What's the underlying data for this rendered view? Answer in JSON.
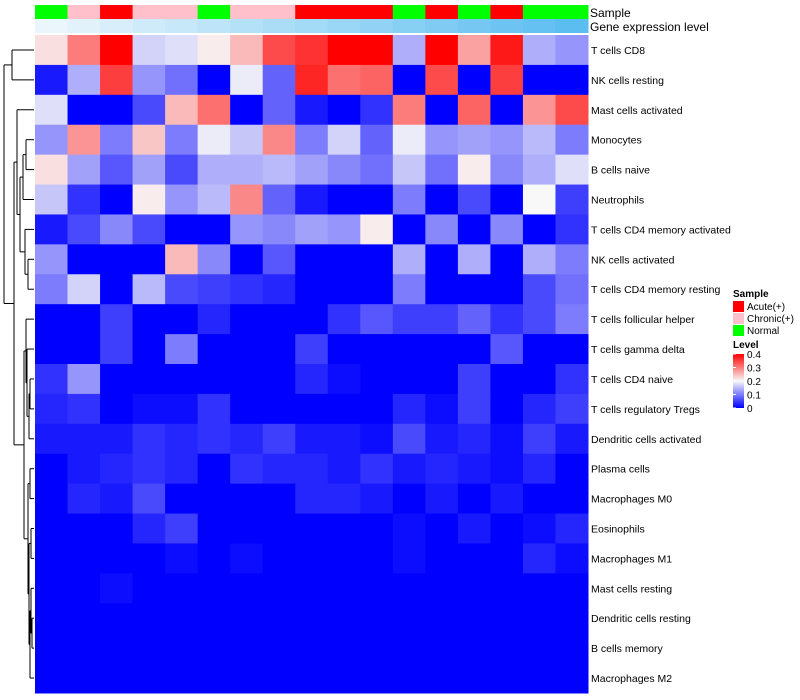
{
  "chart_data": {
    "type": "heatmap",
    "annotation_titles": [
      "Sample",
      "Gene expression level"
    ],
    "rows": [
      "T cells CD8",
      "NK cells resting",
      "Mast cells activated",
      "Monocytes",
      "B cells naive",
      "Neutrophils",
      "T cells CD4 memory activated",
      "NK cells activated",
      "T cells CD4 memory resting",
      "T cells follicular helper",
      "T cells gamma delta",
      "T cells CD4 naive",
      "T cells regulatory  Tregs",
      "Dendritic cells activated",
      "Plasma cells",
      "Macrophages M0",
      "Eosinophils",
      "Macrophages M1",
      "Mast cells resting",
      "Dendritic cells resting",
      "B cells memory",
      "Macrophages M2"
    ],
    "sample_groups": [
      "Normal",
      "Chronic(+)",
      "Acute(+)",
      "Chronic(+)",
      "Chronic(+)",
      "Normal",
      "Chronic(+)",
      "Chronic(+)",
      "Acute(+)",
      "Acute(+)",
      "Acute(+)",
      "Normal",
      "Acute(+)",
      "Normal",
      "Acute(+)",
      "Normal",
      "Normal"
    ],
    "expression_level": [
      0.02,
      0.05,
      0.08,
      0.11,
      0.14,
      0.17,
      0.2,
      0.23,
      0.26,
      0.29,
      0.32,
      0.35,
      0.38,
      0.41,
      0.44,
      0.47,
      0.5
    ],
    "values": [
      [
        0.22,
        0.3,
        0.4,
        0.17,
        0.18,
        0.21,
        0.25,
        0.34,
        0.36,
        0.4,
        0.4,
        0.14,
        0.4,
        0.27,
        0.38,
        0.14,
        0.12
      ],
      [
        0.02,
        0.14,
        0.35,
        0.12,
        0.09,
        0.0,
        0.19,
        0.08,
        0.37,
        0.31,
        0.32,
        0.0,
        0.34,
        0.0,
        0.35,
        0.0,
        0.0
      ],
      [
        0.18,
        0.0,
        0.0,
        0.06,
        0.25,
        0.31,
        0.0,
        0.08,
        0.02,
        0.0,
        0.04,
        0.3,
        0.0,
        0.32,
        0.0,
        0.28,
        0.34
      ],
      [
        0.12,
        0.28,
        0.1,
        0.24,
        0.1,
        0.19,
        0.16,
        0.29,
        0.1,
        0.17,
        0.08,
        0.19,
        0.12,
        0.13,
        0.12,
        0.15,
        0.1
      ],
      [
        0.22,
        0.13,
        0.07,
        0.13,
        0.06,
        0.14,
        0.14,
        0.15,
        0.13,
        0.11,
        0.09,
        0.16,
        0.09,
        0.21,
        0.11,
        0.14,
        0.18
      ],
      [
        0.16,
        0.04,
        0.0,
        0.21,
        0.12,
        0.15,
        0.29,
        0.08,
        0.02,
        0.0,
        0.0,
        0.1,
        0.0,
        0.06,
        0.0,
        0.2,
        0.05
      ],
      [
        0.02,
        0.06,
        0.11,
        0.06,
        0.0,
        0.0,
        0.12,
        0.11,
        0.13,
        0.12,
        0.21,
        0.0,
        0.11,
        0.0,
        0.11,
        0.0,
        0.04
      ],
      [
        0.12,
        0.0,
        0.0,
        0.0,
        0.25,
        0.11,
        0.0,
        0.07,
        0.0,
        0.0,
        0.0,
        0.14,
        0.0,
        0.14,
        0.0,
        0.14,
        0.1
      ],
      [
        0.1,
        0.17,
        0.0,
        0.15,
        0.06,
        0.05,
        0.04,
        0.03,
        0.0,
        0.0,
        0.0,
        0.1,
        0.0,
        0.0,
        0.0,
        0.06,
        0.09
      ],
      [
        0.0,
        0.0,
        0.05,
        0.0,
        0.0,
        0.03,
        0.0,
        0.0,
        0.0,
        0.04,
        0.07,
        0.05,
        0.05,
        0.08,
        0.04,
        0.06,
        0.1
      ],
      [
        0.0,
        0.0,
        0.05,
        0.0,
        0.1,
        0.0,
        0.0,
        0.0,
        0.05,
        0.0,
        0.0,
        0.0,
        0.0,
        0.0,
        0.07,
        0.0,
        0.0
      ],
      [
        0.04,
        0.12,
        0.0,
        0.0,
        0.0,
        0.0,
        0.0,
        0.0,
        0.03,
        0.01,
        0.0,
        0.0,
        0.0,
        0.05,
        0.0,
        0.0,
        0.04
      ],
      [
        0.03,
        0.04,
        0.0,
        0.01,
        0.01,
        0.04,
        0.0,
        0.0,
        0.0,
        0.0,
        0.0,
        0.03,
        0.01,
        0.05,
        0.0,
        0.03,
        0.05
      ],
      [
        0.02,
        0.02,
        0.02,
        0.04,
        0.03,
        0.04,
        0.03,
        0.05,
        0.02,
        0.02,
        0.01,
        0.06,
        0.02,
        0.03,
        0.01,
        0.05,
        0.02
      ],
      [
        0.0,
        0.02,
        0.03,
        0.04,
        0.03,
        0.0,
        0.04,
        0.03,
        0.03,
        0.02,
        0.04,
        0.02,
        0.03,
        0.02,
        0.01,
        0.03,
        0.0
      ],
      [
        0.0,
        0.03,
        0.02,
        0.06,
        0.0,
        0.0,
        0.0,
        0.0,
        0.03,
        0.03,
        0.02,
        0.0,
        0.02,
        0.0,
        0.02,
        0.0,
        0.0
      ],
      [
        0.0,
        0.0,
        0.0,
        0.03,
        0.05,
        0.0,
        0.0,
        0.0,
        0.0,
        0.0,
        0.0,
        0.01,
        0.0,
        0.02,
        0.0,
        0.01,
        0.03
      ],
      [
        0.0,
        0.0,
        0.0,
        0.0,
        0.01,
        0.0,
        0.01,
        0.0,
        0.0,
        0.0,
        0.0,
        0.01,
        0.0,
        0.0,
        0.0,
        0.03,
        0.01
      ],
      [
        0.0,
        0.0,
        0.01,
        0.0,
        0.0,
        0.0,
        0.0,
        0.0,
        0.0,
        0.0,
        0.0,
        0.0,
        0.0,
        0.0,
        0.0,
        0.0,
        0.0
      ],
      [
        0.0,
        0.0,
        0.0,
        0.0,
        0.0,
        0.0,
        0.0,
        0.0,
        0.0,
        0.0,
        0.0,
        0.0,
        0.0,
        0.0,
        0.0,
        0.0,
        0.0
      ],
      [
        0.0,
        0.0,
        0.0,
        0.0,
        0.0,
        0.0,
        0.0,
        0.0,
        0.0,
        0.0,
        0.0,
        0.0,
        0.0,
        0.0,
        0.0,
        0.0,
        0.0
      ],
      [
        0.0,
        0.0,
        0.0,
        0.0,
        0.0,
        0.0,
        0.0,
        0.0,
        0.0,
        0.0,
        0.0,
        0.0,
        0.0,
        0.0,
        0.0,
        0.0,
        0.0
      ]
    ],
    "color_scale": {
      "min": 0,
      "mid": 0.2,
      "max": 0.4,
      "low_color": "#0000ff",
      "mid_color": "#f8f8f8",
      "high_color": "#ff0000"
    },
    "expression_level_colors": [
      "#eaf6fc",
      "#5bbdf0"
    ],
    "legends": [
      {
        "title": "Sample",
        "entries": [
          {
            "label": "Acute(+)",
            "color": "#ff0000"
          },
          {
            "label": "Chronic(+)",
            "color": "#ffc0cb"
          },
          {
            "label": "Normal",
            "color": "#00ff00"
          }
        ]
      },
      {
        "title": "Level",
        "ticks": [
          "0.4",
          "0.3",
          "0.2",
          "0.1",
          "0"
        ],
        "tick_values": [
          0.4,
          0.3,
          0.2,
          0.1,
          0
        ]
      }
    ]
  }
}
